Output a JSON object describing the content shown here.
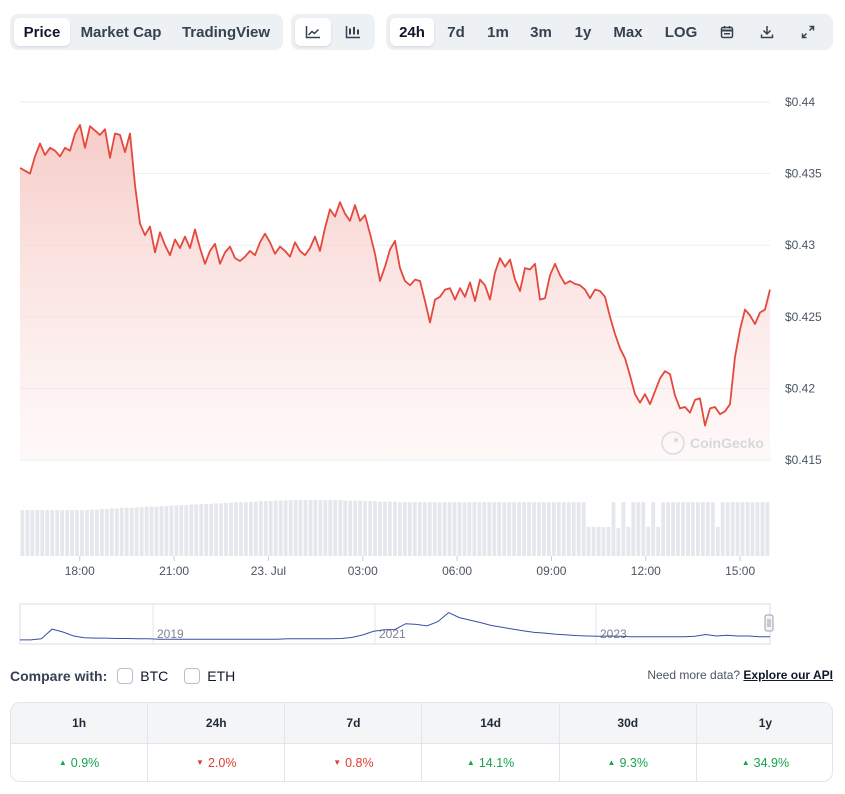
{
  "tabs": {
    "view": [
      {
        "label": "Price",
        "active": true
      },
      {
        "label": "Market Cap",
        "active": false
      },
      {
        "label": "TradingView",
        "active": false
      }
    ],
    "chart_type_icons": [
      "line-chart-icon",
      "candlestick-chart-icon"
    ],
    "ranges": [
      {
        "label": "24h",
        "active": true
      },
      {
        "label": "7d",
        "active": false
      },
      {
        "label": "1m",
        "active": false
      },
      {
        "label": "3m",
        "active": false
      },
      {
        "label": "1y",
        "active": false
      },
      {
        "label": "Max",
        "active": false
      },
      {
        "label": "LOG",
        "active": false
      }
    ],
    "tool_icons": [
      "calendar-icon",
      "download-icon",
      "expand-icon"
    ]
  },
  "watermark": "CoinGecko",
  "colors": {
    "line": "#e5483d",
    "area_top": "#f6c9c5",
    "volume": "#e4e7eb",
    "navigator": "#3a4fa3",
    "up": "#16a34a",
    "down": "#e03c31"
  },
  "chart_data": {
    "type": "line",
    "ylim": [
      0.415,
      0.44
    ],
    "y_ticks": [
      {
        "value": 0.44,
        "label": "$0.44"
      },
      {
        "value": 0.435,
        "label": "$0.435"
      },
      {
        "value": 0.43,
        "label": "$0.43"
      },
      {
        "value": 0.425,
        "label": "$0.425"
      },
      {
        "value": 0.42,
        "label": "$0.42"
      },
      {
        "value": 0.415,
        "label": "$0.415"
      }
    ],
    "xlim": [
      16.1,
      24.05
    ],
    "x_ticks": [
      {
        "value": 18,
        "label": "18:00"
      },
      {
        "value": 21,
        "label": "21:00"
      },
      {
        "value": 24,
        "label": "23. Jul"
      },
      {
        "value": 27,
        "label": "03:00"
      },
      {
        "value": 30,
        "label": "06:00"
      },
      {
        "value": 33,
        "label": "09:00"
      },
      {
        "value": 36,
        "label": "12:00"
      },
      {
        "value": 39,
        "label": "15:00"
      }
    ],
    "x_start": 16.1,
    "x_end": 39.95,
    "price": [
      0.4354,
      0.4352,
      0.435,
      0.4362,
      0.4371,
      0.4363,
      0.4368,
      0.4366,
      0.4362,
      0.4368,
      0.4366,
      0.4378,
      0.4384,
      0.4368,
      0.4383,
      0.438,
      0.4377,
      0.4381,
      0.4361,
      0.4378,
      0.4377,
      0.4365,
      0.4378,
      0.4342,
      0.4315,
      0.4307,
      0.4313,
      0.4295,
      0.4309,
      0.43,
      0.4293,
      0.4304,
      0.4298,
      0.4306,
      0.4298,
      0.4311,
      0.4298,
      0.4287,
      0.4296,
      0.4301,
      0.4287,
      0.4295,
      0.4299,
      0.4291,
      0.4289,
      0.4292,
      0.4296,
      0.4293,
      0.4302,
      0.4308,
      0.4302,
      0.4294,
      0.4299,
      0.4296,
      0.4292,
      0.4302,
      0.4296,
      0.4293,
      0.4298,
      0.4306,
      0.4296,
      0.4312,
      0.4325,
      0.432,
      0.433,
      0.4322,
      0.4317,
      0.4328,
      0.4317,
      0.4321,
      0.4308,
      0.4294,
      0.4275,
      0.4285,
      0.4297,
      0.4303,
      0.4284,
      0.4275,
      0.4272,
      0.4276,
      0.4275,
      0.4261,
      0.4246,
      0.4262,
      0.4264,
      0.4269,
      0.427,
      0.4262,
      0.427,
      0.4264,
      0.4274,
      0.4261,
      0.4276,
      0.4272,
      0.4262,
      0.4281,
      0.4291,
      0.4285,
      0.429,
      0.4276,
      0.4268,
      0.4284,
      0.4283,
      0.4287,
      0.4262,
      0.4263,
      0.4279,
      0.4287,
      0.4279,
      0.4273,
      0.4275,
      0.4273,
      0.4272,
      0.4269,
      0.4263,
      0.4269,
      0.4268,
      0.4264,
      0.425,
      0.4238,
      0.4228,
      0.4221,
      0.4209,
      0.4196,
      0.419,
      0.4196,
      0.4189,
      0.4198,
      0.4207,
      0.4212,
      0.421,
      0.4195,
      0.4186,
      0.4187,
      0.4183,
      0.4192,
      0.4193,
      0.4174,
      0.4186,
      0.4187,
      0.4182,
      0.4184,
      0.4189,
      0.4222,
      0.4241,
      0.4255,
      0.4251,
      0.4245,
      0.4253,
      0.4255,
      0.4269
    ],
    "volume": [
      0.82,
      0.82,
      0.82,
      0.82,
      0.82,
      0.82,
      0.82,
      0.82,
      0.82,
      0.82,
      0.82,
      0.82,
      0.82,
      0.82,
      0.83,
      0.83,
      0.84,
      0.84,
      0.85,
      0.85,
      0.86,
      0.86,
      0.86,
      0.87,
      0.87,
      0.88,
      0.88,
      0.88,
      0.89,
      0.89,
      0.9,
      0.9,
      0.91,
      0.91,
      0.92,
      0.92,
      0.93,
      0.93,
      0.93,
      0.94,
      0.94,
      0.95,
      0.95,
      0.96,
      0.96,
      0.96,
      0.97,
      0.97,
      0.98,
      0.98,
      0.98,
      0.99,
      0.99,
      0.99,
      1.0,
      1.0,
      1.0,
      1.0,
      1.0,
      1.0,
      1.0,
      1.0,
      1.0,
      1.0,
      1.0,
      0.99,
      0.99,
      0.99,
      0.99,
      0.98,
      0.98,
      0.98,
      0.97,
      0.97,
      0.97,
      0.97,
      0.96,
      0.96,
      0.96,
      0.96,
      0.96,
      0.96,
      0.96,
      0.96,
      0.96,
      0.96,
      0.96,
      0.96,
      0.96,
      0.96,
      0.96,
      0.96,
      0.96,
      0.96,
      0.96,
      0.96,
      0.96,
      0.96,
      0.96,
      0.96,
      0.96,
      0.96,
      0.96,
      0.96,
      0.96,
      0.96,
      0.96,
      0.96,
      0.96,
      0.96,
      0.96,
      0.96,
      0.96,
      0.96,
      0.52,
      0.52,
      0.52,
      0.52,
      0.52,
      0.96,
      0.5,
      0.96,
      0.52,
      0.96,
      0.96,
      0.96,
      0.52,
      0.96,
      0.52,
      0.96,
      0.96,
      0.96,
      0.96,
      0.96,
      0.96,
      0.96,
      0.96,
      0.96,
      0.96,
      0.96,
      0.52,
      0.96,
      0.96,
      0.96,
      0.96,
      0.96,
      0.96,
      0.96,
      0.96,
      0.96,
      0.96
    ]
  },
  "navigator": {
    "years": [
      "2019",
      "2021",
      "2023"
    ],
    "values": [
      0.03,
      0.03,
      0.06,
      0.33,
      0.25,
      0.14,
      0.09,
      0.08,
      0.08,
      0.07,
      0.07,
      0.06,
      0.06,
      0.05,
      0.05,
      0.05,
      0.05,
      0.05,
      0.05,
      0.05,
      0.05,
      0.05,
      0.05,
      0.05,
      0.05,
      0.06,
      0.06,
      0.06,
      0.06,
      0.06,
      0.07,
      0.1,
      0.17,
      0.27,
      0.31,
      0.32,
      0.48,
      0.46,
      0.42,
      0.54,
      0.79,
      0.65,
      0.58,
      0.51,
      0.43,
      0.38,
      0.33,
      0.28,
      0.24,
      0.22,
      0.19,
      0.17,
      0.15,
      0.14,
      0.13,
      0.14,
      0.13,
      0.12,
      0.12,
      0.12,
      0.12,
      0.12,
      0.12,
      0.13,
      0.18,
      0.14,
      0.16,
      0.14,
      0.14,
      0.12,
      0.12
    ]
  },
  "compare": {
    "label": "Compare with:",
    "options": [
      "BTC",
      "ETH"
    ],
    "api_prefix": "Need more data?",
    "api_link": "Explore our API"
  },
  "performance": [
    {
      "period": "1h",
      "change": "0.9%",
      "direction": "up"
    },
    {
      "period": "24h",
      "change": "2.0%",
      "direction": "down"
    },
    {
      "period": "7d",
      "change": "0.8%",
      "direction": "down"
    },
    {
      "period": "14d",
      "change": "14.1%",
      "direction": "up"
    },
    {
      "period": "30d",
      "change": "9.3%",
      "direction": "up"
    },
    {
      "period": "1y",
      "change": "34.9%",
      "direction": "up"
    }
  ]
}
